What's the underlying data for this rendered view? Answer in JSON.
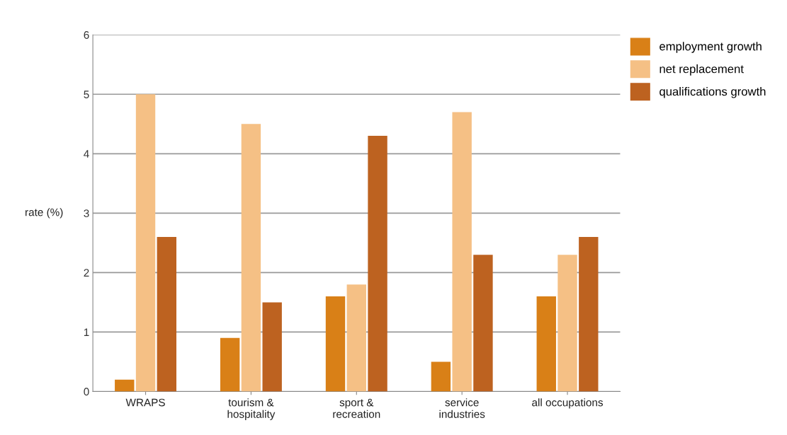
{
  "chart_data": {
    "type": "bar",
    "ylabel": "rate (%)",
    "categories": [
      "WRAPS",
      "tourism &\nhospitality",
      "sport &\nrecreation",
      "service\nindustries",
      "all occupations"
    ],
    "series": [
      {
        "name": "employment growth",
        "color": "#d98017",
        "values": [
          0.2,
          0.9,
          1.6,
          0.5,
          1.6
        ]
      },
      {
        "name": "net replacement",
        "color": "#f5c085",
        "values": [
          5.0,
          4.5,
          1.8,
          4.7,
          2.3
        ]
      },
      {
        "name": "qualifications growth",
        "color": "#bd6220",
        "values": [
          2.6,
          1.5,
          4.3,
          2.3,
          2.6
        ]
      }
    ],
    "ylim": [
      0,
      6
    ],
    "yticks": [
      0,
      1,
      2,
      3,
      4,
      5,
      6
    ],
    "grid": "y",
    "legend": "top right"
  }
}
